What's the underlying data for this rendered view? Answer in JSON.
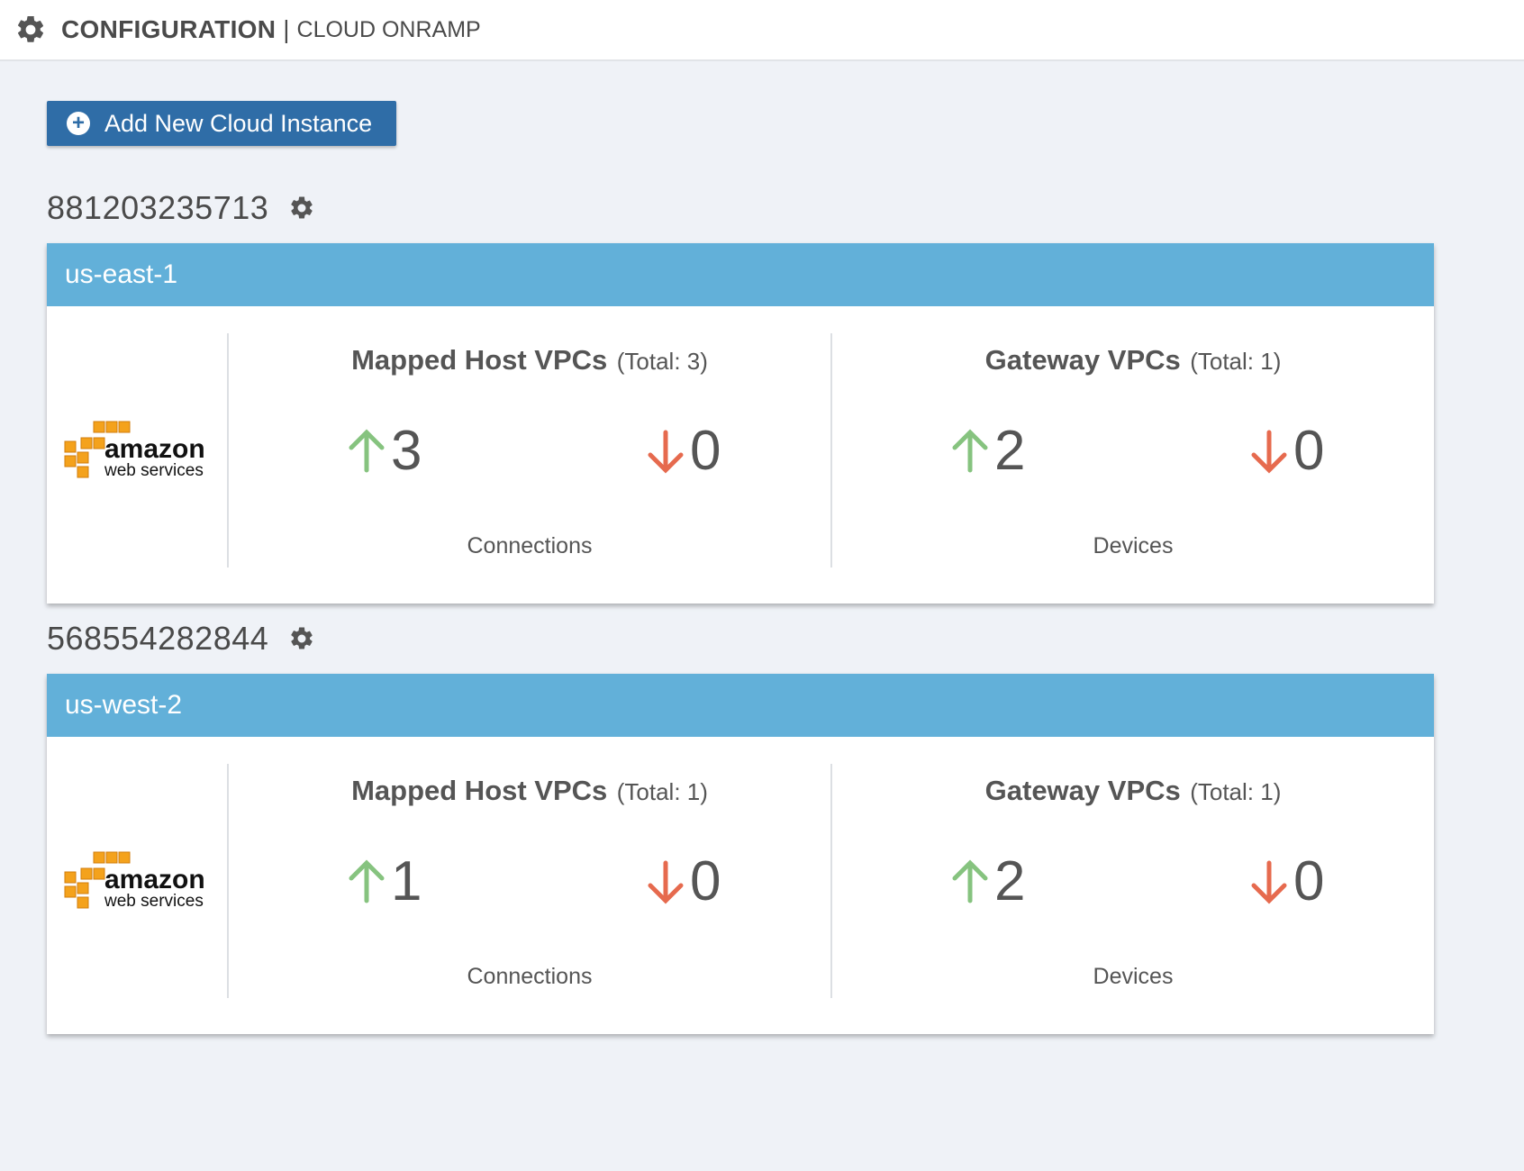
{
  "header": {
    "title": "CONFIGURATION",
    "separator": "|",
    "subtitle": "CLOUD ONRAMP",
    "icon": "gear-icon"
  },
  "add_button": {
    "label": "Add New Cloud Instance",
    "icon": "plus-circle-icon"
  },
  "colors": {
    "up": "#86c37f",
    "down": "#e66a4e",
    "card_header": "#62b0d9",
    "button": "#2f6da7"
  },
  "accounts": [
    {
      "id": "881203235713",
      "region": "us-east-1",
      "logo": {
        "line1": "amazon",
        "line2": "web services"
      },
      "mapped": {
        "title": "Mapped Host VPCs",
        "total": "(Total: 3)",
        "up": "3",
        "down": "0",
        "footer": "Connections"
      },
      "gateway": {
        "title": "Gateway VPCs",
        "total": "(Total: 1)",
        "up": "2",
        "down": "0",
        "footer": "Devices"
      }
    },
    {
      "id": "568554282844",
      "region": "us-west-2",
      "logo": {
        "line1": "amazon",
        "line2": "web services"
      },
      "mapped": {
        "title": "Mapped Host VPCs",
        "total": "(Total: 1)",
        "up": "1",
        "down": "0",
        "footer": "Connections"
      },
      "gateway": {
        "title": "Gateway VPCs",
        "total": "(Total: 1)",
        "up": "2",
        "down": "0",
        "footer": "Devices"
      }
    }
  ]
}
